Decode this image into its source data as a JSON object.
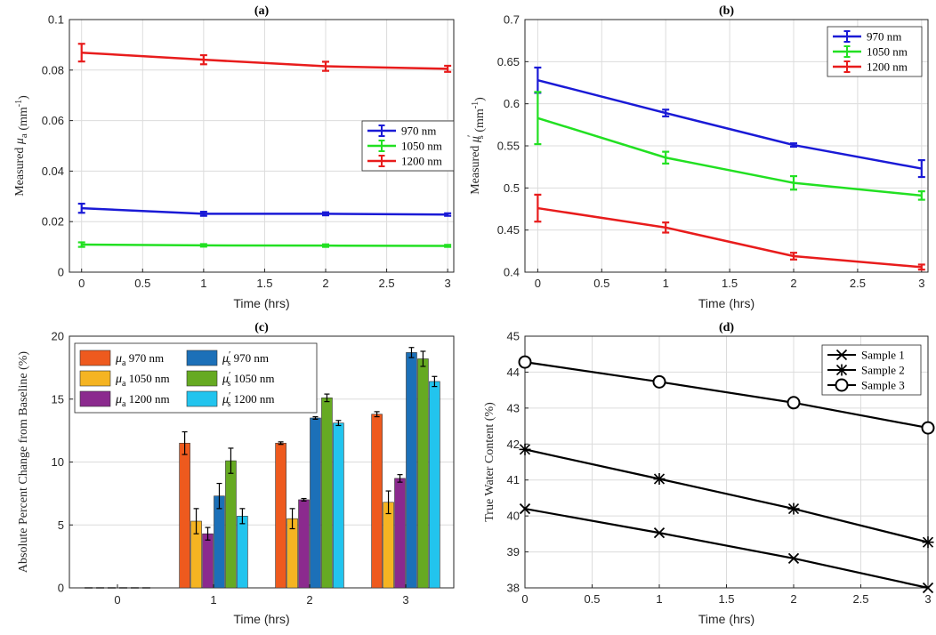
{
  "chart_data": [
    {
      "type": "line",
      "title": "(a)",
      "xlabel": "Time (hrs)",
      "ylabel_main": "Measured ",
      "ylabel_sym": "μ",
      "ylabel_sub": "a",
      "ylabel_unit": " (mm",
      "ylabel_sup": "-1",
      "ylabel_end": ")",
      "xlim": [
        -0.1,
        3.05
      ],
      "ylim": [
        0,
        0.1
      ],
      "xticks": [
        0,
        0.5,
        1,
        1.5,
        2,
        2.5,
        3
      ],
      "xtick_labels": [
        "0",
        "0.5",
        "1",
        "1.5",
        "2",
        "2.5",
        "3"
      ],
      "yticks": [
        0,
        0.02,
        0.04,
        0.06,
        0.08,
        0.1
      ],
      "ytick_labels": [
        "0",
        "0.02",
        "0.04",
        "0.06",
        "0.08",
        "0.1"
      ],
      "x": [
        0,
        1,
        2,
        3
      ],
      "legend_position": "middle-right",
      "series": [
        {
          "name": "970 nm",
          "color": "#1a1ad6",
          "values": [
            0.0253,
            0.0231,
            0.0231,
            0.0228
          ],
          "errors": [
            0.0018,
            0.0008,
            0.0006,
            0.0005
          ]
        },
        {
          "name": "1050 nm",
          "color": "#22e022",
          "values": [
            0.0109,
            0.0106,
            0.0105,
            0.0104
          ],
          "errors": [
            0.0009,
            0.0005,
            0.0005,
            0.0004
          ]
        },
        {
          "name": "1200 nm",
          "color": "#e81c1c",
          "values": [
            0.0869,
            0.0841,
            0.0815,
            0.0805
          ],
          "errors": [
            0.0035,
            0.0018,
            0.0018,
            0.0012
          ]
        }
      ]
    },
    {
      "type": "line",
      "title": "(b)",
      "xlabel": "Time (hrs)",
      "ylabel_main": "Measured ",
      "ylabel_sym": "μ",
      "ylabel_sub": "s",
      "ylabel_prime": "′",
      "ylabel_unit": " (mm",
      "ylabel_sup": "-1",
      "ylabel_end": ")",
      "xlim": [
        -0.1,
        3.05
      ],
      "ylim": [
        0.4,
        0.7
      ],
      "xticks": [
        0,
        0.5,
        1,
        1.5,
        2,
        2.5,
        3
      ],
      "xtick_labels": [
        "0",
        "0.5",
        "1",
        "1.5",
        "2",
        "2.5",
        "3"
      ],
      "yticks": [
        0.4,
        0.45,
        0.5,
        0.55,
        0.6,
        0.65,
        0.7
      ],
      "ytick_labels": [
        "0.4",
        "0.45",
        "0.5",
        "0.55",
        "0.6",
        "0.65",
        "0.7"
      ],
      "x": [
        0,
        1,
        2,
        3
      ],
      "legend_position": "top-right",
      "series": [
        {
          "name": "970 nm",
          "color": "#1a1ad6",
          "values": [
            0.628,
            0.589,
            0.551,
            0.523
          ],
          "errors": [
            0.015,
            0.004,
            0.002,
            0.01
          ]
        },
        {
          "name": "1050 nm",
          "color": "#22e022",
          "values": [
            0.583,
            0.536,
            0.506,
            0.491
          ],
          "errors": [
            0.031,
            0.007,
            0.008,
            0.005
          ]
        },
        {
          "name": "1200 nm",
          "color": "#e81c1c",
          "values": [
            0.476,
            0.453,
            0.419,
            0.406
          ],
          "errors": [
            0.016,
            0.006,
            0.004,
            0.003
          ]
        }
      ]
    },
    {
      "type": "bar",
      "title": "(c)",
      "xlabel": "Time (hrs)",
      "ylabel": "Absolute Percent Change from Baseline (%)",
      "categories": [
        "0",
        "1",
        "2",
        "3"
      ],
      "ylim": [
        0,
        20
      ],
      "yticks": [
        0,
        5,
        10,
        15,
        20
      ],
      "ytick_labels": [
        "0",
        "5",
        "10",
        "15",
        "20"
      ],
      "legend_position": "top-left",
      "series": [
        {
          "sym": "μ",
          "sub": "a",
          "prime": "",
          "label": " 970 nm",
          "color": "#ee5a1e",
          "values": [
            0,
            11.5,
            11.5,
            13.8
          ],
          "errors": [
            0,
            0.9,
            0.1,
            0.2
          ]
        },
        {
          "sym": "μ",
          "sub": "a",
          "prime": "",
          "label": " 1050 nm",
          "color": "#f5b422",
          "values": [
            0,
            5.3,
            5.5,
            6.8
          ],
          "errors": [
            0,
            1.0,
            0.8,
            0.9
          ]
        },
        {
          "sym": "μ",
          "sub": "a",
          "prime": "",
          "label": " 1200 nm",
          "color": "#8b2a8e",
          "values": [
            0,
            4.3,
            7.0,
            8.7
          ],
          "errors": [
            0,
            0.5,
            0.1,
            0.3
          ]
        },
        {
          "sym": "μ",
          "sub": "s",
          "prime": "′",
          "label": " 970 nm",
          "color": "#1c70b8",
          "values": [
            0,
            7.3,
            13.5,
            18.7
          ],
          "errors": [
            0,
            1.0,
            0.1,
            0.4
          ]
        },
        {
          "sym": "μ",
          "sub": "s",
          "prime": "′",
          "label": " 1050 nm",
          "color": "#66aa22",
          "values": [
            0,
            10.1,
            15.1,
            18.2
          ],
          "errors": [
            0,
            1.0,
            0.3,
            0.6
          ]
        },
        {
          "sym": "μ",
          "sub": "s",
          "prime": "′",
          "label": " 1200 nm",
          "color": "#22c4ee",
          "values": [
            0,
            5.7,
            13.1,
            16.4
          ],
          "errors": [
            0,
            0.6,
            0.2,
            0.4
          ]
        }
      ]
    },
    {
      "type": "line",
      "title": "(d)",
      "xlabel": "Time (hrs)",
      "ylabel": "True Water Content (%)",
      "xlim": [
        0,
        3
      ],
      "ylim": [
        38,
        45
      ],
      "xticks": [
        0,
        0.5,
        1,
        1.5,
        2,
        2.5,
        3
      ],
      "xtick_labels": [
        "0",
        "0.5",
        "1",
        "1.5",
        "2",
        "2.5",
        "3"
      ],
      "yticks": [
        38,
        39,
        40,
        41,
        42,
        43,
        44,
        45
      ],
      "ytick_labels": [
        "38",
        "39",
        "40",
        "41",
        "42",
        "43",
        "44",
        "45"
      ],
      "x": [
        0,
        1,
        2,
        3
      ],
      "legend_position": "top-right",
      "series": [
        {
          "name": "Sample 1",
          "marker": "x",
          "color": "#000000",
          "values": [
            40.2,
            39.53,
            38.82,
            38.0
          ]
        },
        {
          "name": "Sample 2",
          "marker": "star",
          "color": "#000000",
          "values": [
            41.85,
            41.03,
            40.2,
            39.27
          ]
        },
        {
          "name": "Sample 3",
          "marker": "circle",
          "color": "#000000",
          "values": [
            44.28,
            43.73,
            43.15,
            42.45
          ]
        }
      ]
    }
  ]
}
